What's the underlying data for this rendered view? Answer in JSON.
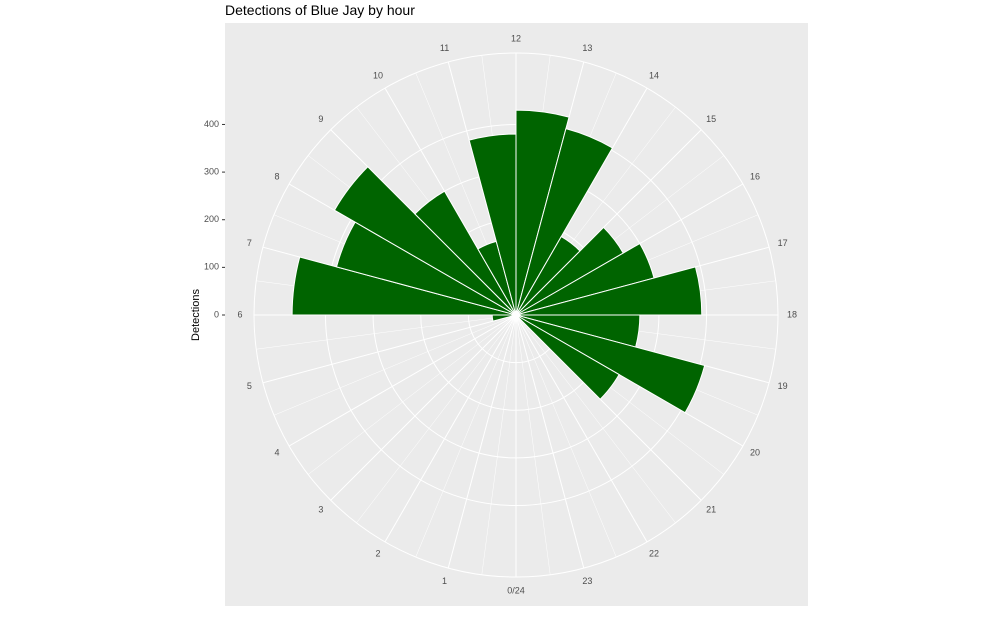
{
  "chart_data": {
    "type": "bar",
    "coordinate_system": "polar",
    "title": "Detections of Blue Jay by hour",
    "xlabel": "",
    "ylabel": "Detections",
    "categories": [
      "0/24",
      "1",
      "2",
      "3",
      "4",
      "5",
      "6",
      "7",
      "8",
      "9",
      "10",
      "11",
      "12",
      "13",
      "14",
      "15",
      "16",
      "17",
      "18",
      "19",
      "20",
      "21",
      "22",
      "23"
    ],
    "values": [
      0,
      0,
      0,
      0,
      0,
      50,
      470,
      390,
      440,
      300,
      160,
      380,
      430,
      405,
      190,
      260,
      300,
      390,
      260,
      410,
      250,
      0,
      0,
      0
    ],
    "radial_ticks": [
      "0",
      "100",
      "200",
      "300",
      "400"
    ],
    "radial_tick_values": [
      0,
      100,
      200,
      300,
      400
    ],
    "rlim": [
      0,
      550
    ],
    "bar_color": "#006400",
    "panel_color": "#EBEBEB",
    "grid": true,
    "legend": "none"
  }
}
